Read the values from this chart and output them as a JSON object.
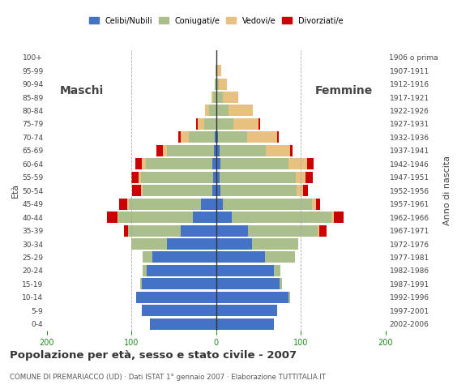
{
  "age_groups": [
    "0-4",
    "5-9",
    "10-14",
    "15-19",
    "20-24",
    "25-29",
    "30-34",
    "35-39",
    "40-44",
    "45-49",
    "50-54",
    "55-59",
    "60-64",
    "65-69",
    "70-74",
    "75-79",
    "80-84",
    "85-89",
    "90-94",
    "95-99",
    "100+"
  ],
  "birth_years": [
    "2002-2006",
    "1997-2001",
    "1992-1996",
    "1987-1991",
    "1982-1986",
    "1977-1981",
    "1972-1976",
    "1967-1971",
    "1962-1966",
    "1957-1961",
    "1952-1956",
    "1947-1951",
    "1942-1946",
    "1937-1941",
    "1932-1936",
    "1927-1931",
    "1922-1926",
    "1917-1921",
    "1912-1916",
    "1907-1911",
    "1906 o prima"
  ],
  "males": {
    "celibi": [
      78,
      88,
      95,
      88,
      82,
      75,
      58,
      42,
      28,
      18,
      5,
      4,
      5,
      3,
      2,
      0,
      0,
      0,
      0,
      0,
      0
    ],
    "coniugati": [
      0,
      0,
      0,
      2,
      5,
      12,
      42,
      62,
      88,
      85,
      82,
      85,
      78,
      55,
      30,
      14,
      8,
      4,
      2,
      1,
      0
    ],
    "vedovi": [
      0,
      0,
      0,
      0,
      0,
      0,
      0,
      0,
      1,
      2,
      2,
      3,
      5,
      5,
      10,
      8,
      5,
      2,
      0,
      0,
      0
    ],
    "divorziati": [
      0,
      0,
      0,
      0,
      0,
      0,
      0,
      5,
      12,
      10,
      10,
      8,
      8,
      8,
      3,
      2,
      0,
      0,
      0,
      0,
      0
    ]
  },
  "females": {
    "nubili": [
      68,
      72,
      85,
      75,
      68,
      58,
      42,
      38,
      18,
      8,
      5,
      4,
      5,
      4,
      2,
      0,
      0,
      0,
      0,
      0,
      0
    ],
    "coniugate": [
      0,
      0,
      2,
      3,
      8,
      35,
      55,
      82,
      118,
      105,
      90,
      90,
      80,
      55,
      35,
      20,
      15,
      8,
      3,
      1,
      0
    ],
    "vedove": [
      0,
      0,
      0,
      0,
      0,
      0,
      0,
      2,
      3,
      5,
      8,
      12,
      22,
      28,
      35,
      30,
      28,
      18,
      10,
      5,
      0
    ],
    "divorziate": [
      0,
      0,
      0,
      0,
      0,
      0,
      0,
      8,
      12,
      5,
      5,
      8,
      8,
      3,
      2,
      2,
      0,
      0,
      0,
      0,
      0
    ]
  },
  "colors": {
    "celibi_nubili": "#4472C4",
    "coniugati": "#AABF8C",
    "vedovi": "#E8C080",
    "divorziati": "#CC0000"
  },
  "title": "Popolazione per età, sesso e stato civile - 2007",
  "subtitle": "COMUNE DI PREMARIACCO (UD) · Dati ISTAT 1° gennaio 2007 · Elaborazione TUTTITALIA.IT",
  "xlabel_left": "Maschi",
  "xlabel_right": "Femmine",
  "ylabel_left": "Età",
  "ylabel_right": "Anno di nascita",
  "xlim": 200,
  "background_color": "#ffffff"
}
